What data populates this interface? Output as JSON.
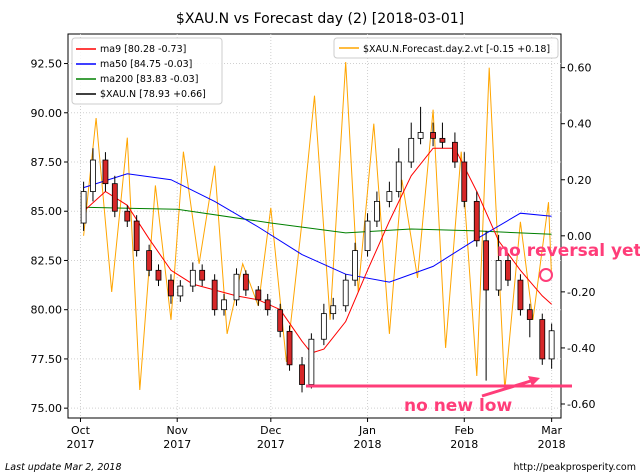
{
  "chart_data": {
    "type": "line",
    "title": "$XAU.N vs Forecast day (2)  [2018-03-01]",
    "x_tick_labels": [
      [
        "Oct",
        "2017"
      ],
      [
        "Nov",
        "2017"
      ],
      [
        "Dec",
        "2017"
      ],
      [
        "Jan",
        "2018"
      ],
      [
        "Feb",
        "2018"
      ],
      [
        "Mar",
        "2018"
      ]
    ],
    "x_range": [
      "2017-09-27",
      "2018-03-04"
    ],
    "left_axis": {
      "ylim": [
        74.5,
        94.0
      ],
      "ticks": [
        "75.00",
        "77.50",
        "80.00",
        "82.50",
        "85.00",
        "87.50",
        "90.00",
        "92.50"
      ]
    },
    "right_axis": {
      "ylim": [
        -0.65,
        0.72
      ],
      "ticks": [
        "-0.60",
        "-0.40",
        "-0.20",
        "0.00",
        "0.20",
        "0.40",
        "0.60"
      ]
    },
    "grid": true,
    "legends": {
      "left": [
        {
          "label": "ma9 [80.28 -0.73]",
          "color": "#ff0000"
        },
        {
          "label": "ma50 [84.75 -0.03]",
          "color": "#0000ff"
        },
        {
          "label": "ma200 [83.83 -0.03]",
          "color": "#008000"
        },
        {
          "label": "$XAU.N [78.93 +0.66]",
          "color": "#000000"
        }
      ],
      "right": [
        {
          "label": "$XAU.N.Forecast.day.2.vt [-0.15 +0.18]",
          "color": "#ffa500"
        }
      ]
    },
    "series": [
      {
        "name": "$XAU.N",
        "kind": "candlestick",
        "axis": "left",
        "x": [
          "2017-10-02",
          "2017-10-05",
          "2017-10-09",
          "2017-10-12",
          "2017-10-16",
          "2017-10-19",
          "2017-10-23",
          "2017-10-26",
          "2017-10-30",
          "2017-11-02",
          "2017-11-06",
          "2017-11-09",
          "2017-11-13",
          "2017-11-16",
          "2017-11-20",
          "2017-11-23",
          "2017-11-27",
          "2017-11-30",
          "2017-12-04",
          "2017-12-07",
          "2017-12-11",
          "2017-12-14",
          "2017-12-18",
          "2017-12-21",
          "2017-12-25",
          "2017-12-28",
          "2018-01-01",
          "2018-01-04",
          "2018-01-08",
          "2018-01-11",
          "2018-01-15",
          "2018-01-18",
          "2018-01-22",
          "2018-01-25",
          "2018-01-29",
          "2018-02-01",
          "2018-02-05",
          "2018-02-08",
          "2018-02-12",
          "2018-02-15",
          "2018-02-19",
          "2018-02-22",
          "2018-02-26",
          "2018-03-01"
        ],
        "open": [
          84.4,
          86.0,
          87.6,
          86.4,
          85.0,
          84.5,
          83.0,
          82.0,
          81.5,
          80.7,
          81.2,
          82.0,
          81.5,
          80.0,
          80.5,
          81.8,
          81.0,
          80.5,
          80.0,
          78.9,
          77.2,
          76.2,
          78.5,
          79.8,
          80.2,
          81.5,
          83.0,
          84.5,
          85.5,
          86.0,
          87.5,
          88.7,
          89.0,
          88.7,
          88.5,
          87.5,
          85.5,
          83.5,
          81.0,
          82.5,
          81.5,
          80.0,
          79.5,
          77.5
        ],
        "close": [
          86.0,
          87.6,
          86.4,
          85.0,
          84.5,
          83.0,
          82.0,
          81.5,
          80.7,
          81.2,
          82.0,
          81.5,
          80.0,
          80.5,
          81.8,
          81.0,
          80.5,
          80.0,
          78.9,
          77.2,
          76.2,
          78.5,
          79.8,
          80.2,
          81.5,
          83.0,
          84.5,
          85.5,
          86.0,
          87.5,
          88.7,
          89.0,
          88.7,
          88.5,
          87.5,
          85.5,
          83.5,
          81.0,
          82.5,
          81.5,
          80.0,
          79.5,
          77.5,
          78.93
        ],
        "high": [
          86.5,
          88.2,
          88.0,
          86.8,
          85.3,
          84.8,
          83.3,
          82.3,
          81.8,
          81.5,
          82.4,
          82.3,
          81.8,
          80.8,
          82.1,
          82.0,
          81.2,
          80.8,
          80.3,
          79.2,
          77.6,
          78.8,
          80.3,
          80.6,
          81.8,
          83.4,
          84.9,
          86.0,
          86.5,
          88.2,
          89.5,
          90.3,
          89.5,
          89.5,
          89.0,
          88.0,
          86.0,
          84.0,
          83.8,
          82.8,
          81.8,
          80.3,
          79.8,
          79.3
        ],
        "low": [
          84.0,
          85.5,
          86.0,
          84.7,
          84.2,
          82.7,
          81.7,
          81.2,
          80.3,
          80.4,
          80.9,
          81.2,
          79.7,
          79.7,
          80.2,
          80.7,
          80.2,
          79.7,
          78.6,
          76.9,
          75.8,
          76.0,
          78.2,
          79.5,
          79.9,
          81.2,
          82.7,
          84.2,
          85.2,
          85.7,
          87.2,
          88.4,
          88.3,
          88.2,
          87.2,
          85.2,
          83.2,
          76.4,
          80.7,
          81.2,
          79.7,
          78.6,
          77.2,
          77.0
        ]
      },
      {
        "name": "ma9",
        "axis": "left",
        "x": [
          "2017-10-02",
          "2017-10-09",
          "2017-10-16",
          "2017-10-23",
          "2017-10-30",
          "2017-11-06",
          "2017-11-13",
          "2017-11-20",
          "2017-11-27",
          "2017-12-04",
          "2017-12-11",
          "2017-12-14",
          "2017-12-18",
          "2017-12-25",
          "2018-01-01",
          "2018-01-08",
          "2018-01-15",
          "2018-01-22",
          "2018-01-29",
          "2018-02-05",
          "2018-02-12",
          "2018-02-19",
          "2018-02-26",
          "2018-03-01"
        ],
        "values": [
          85.0,
          86.0,
          85.3,
          83.6,
          82.0,
          81.3,
          81.0,
          80.7,
          80.5,
          80.0,
          78.4,
          77.8,
          78.0,
          79.4,
          82.0,
          84.5,
          86.8,
          88.2,
          88.2,
          86.0,
          83.5,
          82.0,
          80.7,
          80.28
        ]
      },
      {
        "name": "ma50",
        "axis": "left",
        "x": [
          "2017-10-02",
          "2017-10-16",
          "2017-10-30",
          "2017-11-13",
          "2017-11-27",
          "2017-12-11",
          "2017-12-25",
          "2018-01-08",
          "2018-01-22",
          "2018-02-05",
          "2018-02-19",
          "2018-03-01"
        ],
        "values": [
          86.2,
          86.9,
          86.6,
          85.5,
          84.2,
          82.8,
          81.8,
          81.4,
          82.2,
          83.6,
          84.9,
          84.75
        ]
      },
      {
        "name": "ma200",
        "axis": "left",
        "x": [
          "2017-10-02",
          "2017-11-01",
          "2017-12-01",
          "2017-12-25",
          "2018-01-15",
          "2018-02-05",
          "2018-03-01"
        ],
        "values": [
          85.2,
          85.1,
          84.4,
          83.9,
          84.1,
          84.0,
          83.83
        ]
      },
      {
        "name": "$XAU.N.Forecast.day.2.vt",
        "axis": "right",
        "x": [
          "2017-10-02",
          "2017-10-06",
          "2017-10-11",
          "2017-10-16",
          "2017-10-20",
          "2017-10-25",
          "2017-10-30",
          "2017-11-03",
          "2017-11-08",
          "2017-11-13",
          "2017-11-17",
          "2017-11-22",
          "2017-11-27",
          "2017-12-01",
          "2017-12-06",
          "2017-12-11",
          "2017-12-15",
          "2017-12-20",
          "2017-12-25",
          "2017-12-29",
          "2018-01-03",
          "2018-01-08",
          "2018-01-12",
          "2018-01-17",
          "2018-01-22",
          "2018-01-26",
          "2018-01-31",
          "2018-02-05",
          "2018-02-09",
          "2018-02-14",
          "2018-02-19",
          "2018-02-23",
          "2018-02-28",
          "2018-03-01"
        ],
        "values": [
          0.0,
          0.42,
          -0.2,
          0.35,
          -0.55,
          0.18,
          -0.3,
          0.3,
          -0.1,
          0.25,
          -0.35,
          -0.1,
          -0.25,
          0.1,
          -0.45,
          0.05,
          0.5,
          -0.3,
          0.62,
          -0.2,
          0.4,
          -0.35,
          0.2,
          -0.15,
          0.45,
          -0.4,
          0.3,
          -0.5,
          0.6,
          -0.55,
          0.05,
          -0.3,
          0.12,
          -0.15
        ]
      }
    ]
  },
  "annotations": {
    "no_reversal": "no reversal yet",
    "no_new_low": "no new low"
  },
  "footer": {
    "left": "Last update Mar  2, 2018",
    "right": "http://peakprosperity.com"
  }
}
